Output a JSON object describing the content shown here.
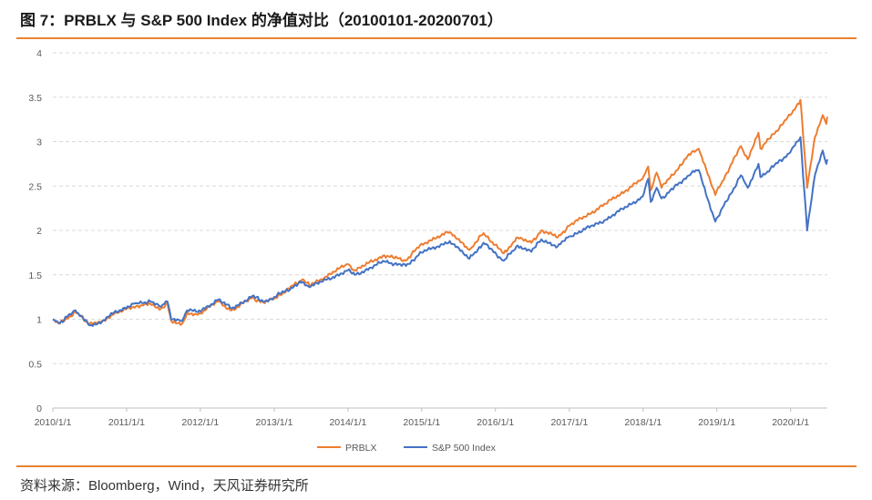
{
  "header": {
    "title": "图 7：PRBLX 与 S&P 500 Index 的净值对比（20100101-20200701）"
  },
  "footer": {
    "source": "资料来源：Bloomberg，Wind，天风证券研究所"
  },
  "colors": {
    "accent": "#e8832e",
    "prblx": "#ed7d31",
    "sp500": "#4472c4",
    "grid": "#d9d9d9"
  },
  "chart_data": {
    "type": "line",
    "title": "",
    "xlabel": "",
    "ylabel": "",
    "ylim": [
      0,
      4
    ],
    "yticks": [
      "0",
      "0.5",
      "1",
      "1.5",
      "2",
      "2.5",
      "3",
      "3.5",
      "4"
    ],
    "xticks": [
      "2010/1/1",
      "2011/1/1",
      "2012/1/1",
      "2013/1/1",
      "2014/1/1",
      "2015/1/1",
      "2016/1/1",
      "2017/1/1",
      "2018/1/1",
      "2019/1/1",
      "2020/1/1"
    ],
    "xrange": [
      "2010-01-01",
      "2020-07-01"
    ],
    "grid": "horizontal dashed",
    "legend_position": "bottom",
    "series": [
      {
        "name": "PRBLX",
        "color": "#ed7d31",
        "points": [
          [
            "2010-01-01",
            1.0
          ],
          [
            "2010-02-05",
            0.95
          ],
          [
            "2010-04-23",
            1.08
          ],
          [
            "2010-07-02",
            0.95
          ],
          [
            "2010-09-01",
            0.98
          ],
          [
            "2010-11-01",
            1.06
          ],
          [
            "2011-02-18",
            1.15
          ],
          [
            "2011-04-29",
            1.17
          ],
          [
            "2011-06-20",
            1.12
          ],
          [
            "2011-07-22",
            1.18
          ],
          [
            "2011-08-10",
            0.98
          ],
          [
            "2011-10-03",
            0.95
          ],
          [
            "2011-10-28",
            1.08
          ],
          [
            "2011-12-19",
            1.05
          ],
          [
            "2012-03-30",
            1.2
          ],
          [
            "2012-06-04",
            1.1
          ],
          [
            "2012-09-14",
            1.24
          ],
          [
            "2012-11-15",
            1.18
          ],
          [
            "2012-12-31",
            1.23
          ],
          [
            "2013-05-21",
            1.45
          ],
          [
            "2013-06-24",
            1.38
          ],
          [
            "2013-12-31",
            1.62
          ],
          [
            "2014-02-04",
            1.55
          ],
          [
            "2014-06-30",
            1.72
          ],
          [
            "2014-10-15",
            1.66
          ],
          [
            "2014-12-31",
            1.85
          ],
          [
            "2015-05-20",
            1.98
          ],
          [
            "2015-08-25",
            1.78
          ],
          [
            "2015-11-03",
            1.97
          ],
          [
            "2016-02-11",
            1.74
          ],
          [
            "2016-04-20",
            1.92
          ],
          [
            "2016-06-27",
            1.86
          ],
          [
            "2016-08-15",
            2.0
          ],
          [
            "2016-11-04",
            1.92
          ],
          [
            "2016-12-30",
            2.05
          ],
          [
            "2017-06-30",
            2.3
          ],
          [
            "2017-12-29",
            2.58
          ],
          [
            "2018-01-26",
            2.72
          ],
          [
            "2018-02-08",
            2.45
          ],
          [
            "2018-03-09",
            2.65
          ],
          [
            "2018-04-02",
            2.48
          ],
          [
            "2018-08-29",
            2.88
          ],
          [
            "2018-10-03",
            2.92
          ],
          [
            "2018-12-24",
            2.4
          ],
          [
            "2019-04-30",
            2.95
          ],
          [
            "2019-06-03",
            2.8
          ],
          [
            "2019-07-26",
            3.1
          ],
          [
            "2019-08-05",
            2.92
          ],
          [
            "2019-12-31",
            3.3
          ],
          [
            "2020-02-19",
            3.47
          ],
          [
            "2020-03-23",
            2.48
          ],
          [
            "2020-04-30",
            3.05
          ],
          [
            "2020-06-08",
            3.3
          ],
          [
            "2020-06-26",
            3.2
          ],
          [
            "2020-07-01",
            3.28
          ]
        ]
      },
      {
        "name": "S&P 500 Index",
        "color": "#4472c4",
        "points": [
          [
            "2010-01-01",
            1.0
          ],
          [
            "2010-02-05",
            0.96
          ],
          [
            "2010-04-23",
            1.1
          ],
          [
            "2010-07-02",
            0.93
          ],
          [
            "2010-09-01",
            0.97
          ],
          [
            "2010-11-01",
            1.08
          ],
          [
            "2011-02-18",
            1.18
          ],
          [
            "2011-04-29",
            1.2
          ],
          [
            "2011-06-20",
            1.14
          ],
          [
            "2011-07-22",
            1.2
          ],
          [
            "2011-08-10",
            1.0
          ],
          [
            "2011-10-03",
            0.98
          ],
          [
            "2011-10-28",
            1.1
          ],
          [
            "2011-12-19",
            1.08
          ],
          [
            "2012-03-30",
            1.22
          ],
          [
            "2012-06-04",
            1.12
          ],
          [
            "2012-09-14",
            1.26
          ],
          [
            "2012-11-15",
            1.2
          ],
          [
            "2012-12-31",
            1.25
          ],
          [
            "2013-05-21",
            1.42
          ],
          [
            "2013-06-24",
            1.36
          ],
          [
            "2013-12-31",
            1.55
          ],
          [
            "2014-02-04",
            1.5
          ],
          [
            "2014-06-30",
            1.65
          ],
          [
            "2014-10-15",
            1.6
          ],
          [
            "2014-12-31",
            1.75
          ],
          [
            "2015-05-20",
            1.88
          ],
          [
            "2015-08-25",
            1.68
          ],
          [
            "2015-11-03",
            1.86
          ],
          [
            "2016-02-11",
            1.66
          ],
          [
            "2016-04-20",
            1.83
          ],
          [
            "2016-06-27",
            1.76
          ],
          [
            "2016-08-15",
            1.9
          ],
          [
            "2016-11-04",
            1.82
          ],
          [
            "2016-12-30",
            1.93
          ],
          [
            "2017-06-30",
            2.12
          ],
          [
            "2017-12-29",
            2.38
          ],
          [
            "2018-01-26",
            2.58
          ],
          [
            "2018-02-08",
            2.32
          ],
          [
            "2018-03-09",
            2.48
          ],
          [
            "2018-04-02",
            2.36
          ],
          [
            "2018-08-29",
            2.65
          ],
          [
            "2018-10-03",
            2.68
          ],
          [
            "2018-12-24",
            2.1
          ],
          [
            "2019-04-30",
            2.62
          ],
          [
            "2019-06-03",
            2.48
          ],
          [
            "2019-07-26",
            2.75
          ],
          [
            "2019-08-05",
            2.6
          ],
          [
            "2019-12-31",
            2.88
          ],
          [
            "2020-02-19",
            3.05
          ],
          [
            "2020-03-23",
            2.0
          ],
          [
            "2020-04-30",
            2.62
          ],
          [
            "2020-06-08",
            2.9
          ],
          [
            "2020-06-26",
            2.75
          ],
          [
            "2020-07-01",
            2.8
          ]
        ]
      }
    ]
  }
}
